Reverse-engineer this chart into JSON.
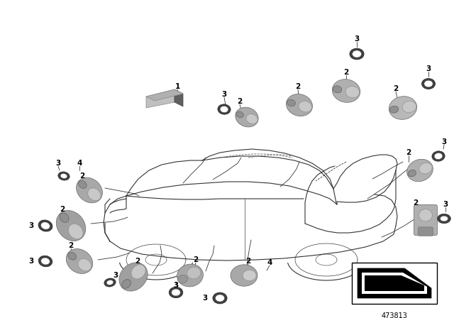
{
  "bg_color": "#ffffff",
  "part_number": "473813",
  "figsize": [
    6.4,
    4.48
  ],
  "dpi": 100,
  "car": {
    "color": "#333333",
    "lw": 0.8
  },
  "components": {
    "sensor_color_light": "#b0b0b0",
    "sensor_color_dark": "#888888",
    "sensor_color_mid": "#999999",
    "gasket_color": "#404040",
    "gasket_inner": "#ffffff"
  },
  "label_fontsize": 7.5,
  "partnumber_fontsize": 7.0
}
